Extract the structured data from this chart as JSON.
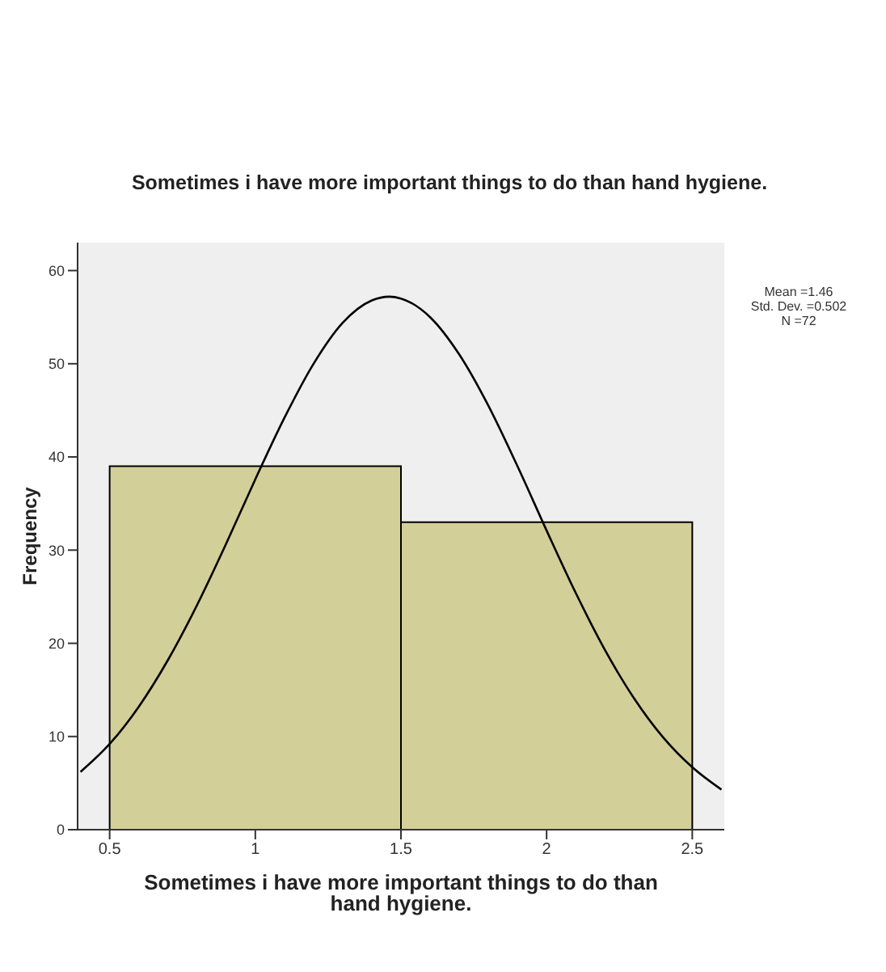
{
  "chart_data": {
    "type": "histogram",
    "title": "Sometimes i have more important things to do than hand hygiene.",
    "xlabel": "Sometimes i have more important things to do than hand hygiene.",
    "ylabel": "Frequency",
    "bins": [
      0.5,
      1.5,
      2.5
    ],
    "values": [
      39,
      33
    ],
    "color": "#d3cf98",
    "series": [
      {
        "type": "line",
        "color": "#000000",
        "x": [
          0.4,
          0.5,
          0.6,
          0.7,
          0.8,
          0.9,
          1.0,
          1.1,
          1.2,
          1.3,
          1.4,
          1.46,
          1.5,
          1.6,
          1.7,
          1.8,
          1.9,
          2.0,
          2.1,
          2.2,
          2.3,
          2.4,
          2.5,
          2.6
        ],
        "values": [
          6.2,
          9.2,
          13.2,
          18.2,
          24.1,
          30.7,
          37.6,
          44.2,
          50.0,
          54.4,
          56.8,
          57.2,
          57.0,
          55.0,
          51.0,
          45.5,
          39.0,
          32.1,
          25.4,
          19.3,
          14.1,
          9.9,
          6.7,
          4.3
        ]
      }
    ],
    "xlim": [
      0.39,
      2.61
    ],
    "xticks": [
      0.5,
      1,
      1.5,
      2,
      2.5
    ],
    "ylim": [
      0,
      63
    ],
    "yticks": [
      0,
      10,
      20,
      30,
      40,
      50,
      60
    ],
    "grid": false,
    "legend": false,
    "annotations": [
      "Mean =1.46\nStd. Dev. =0.502\nN =72"
    ]
  }
}
